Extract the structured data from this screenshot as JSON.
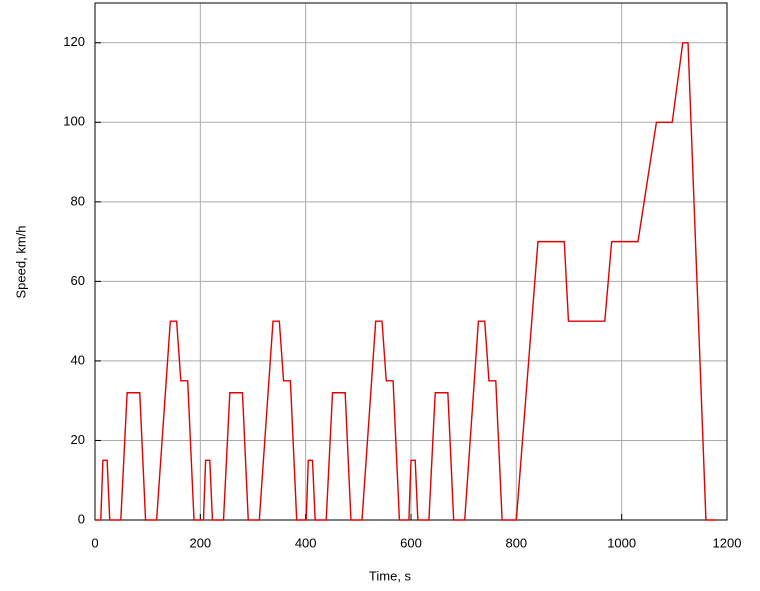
{
  "chart_data": {
    "type": "line",
    "xlabel": "Time, s",
    "ylabel": "Speed, km/h",
    "xlim": [
      0,
      1200
    ],
    "ylim": [
      0,
      130
    ],
    "xticks": [
      0,
      200,
      400,
      600,
      800,
      1000,
      1200
    ],
    "yticks": [
      0,
      20,
      40,
      60,
      80,
      100,
      120
    ],
    "grid": true,
    "series": [
      {
        "color": "#e00000",
        "x": [
          0,
          11,
          15,
          23,
          28,
          49,
          61,
          85,
          96,
          117,
          143,
          155,
          163,
          176,
          188,
          195,
          206,
          210,
          218,
          223,
          244,
          256,
          280,
          291,
          312,
          338,
          350,
          358,
          371,
          383,
          390,
          401,
          405,
          413,
          418,
          439,
          451,
          475,
          486,
          507,
          533,
          545,
          553,
          566,
          578,
          585,
          596,
          600,
          608,
          613,
          634,
          646,
          670,
          681,
          702,
          728,
          740,
          748,
          761,
          773,
          780,
          800,
          841,
          891,
          899,
          968,
          981,
          1031,
          1066,
          1096,
          1116,
          1126,
          1160,
          1180
        ],
        "values": [
          0,
          0,
          15,
          15,
          0,
          0,
          32,
          32,
          0,
          0,
          50,
          50,
          35,
          35,
          0,
          0,
          0,
          15,
          15,
          0,
          0,
          32,
          32,
          0,
          0,
          50,
          50,
          35,
          35,
          0,
          0,
          0,
          15,
          15,
          0,
          0,
          32,
          32,
          0,
          0,
          50,
          50,
          35,
          35,
          0,
          0,
          0,
          15,
          15,
          0,
          0,
          32,
          32,
          0,
          0,
          50,
          50,
          35,
          35,
          0,
          0,
          0,
          70,
          70,
          50,
          50,
          70,
          70,
          100,
          100,
          120,
          120,
          0,
          0
        ]
      }
    ]
  }
}
